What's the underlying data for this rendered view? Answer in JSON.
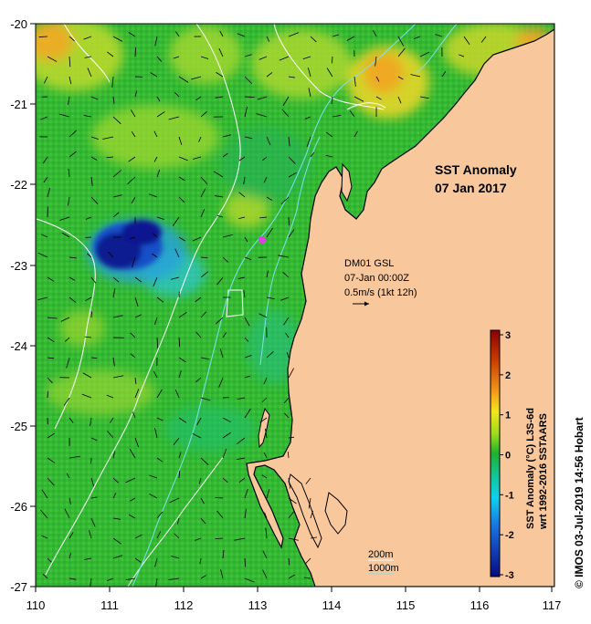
{
  "map": {
    "title": "SST Anomaly",
    "date": "07 Jan 2017",
    "station_label": "DM01 GSL",
    "station_time": "07-Jan 00:00Z",
    "current_scale": "0.5m/s (1kt 12h)",
    "contour_legend": [
      "200m",
      "1000m"
    ],
    "credit": "© IMOS 03-Jul-2019 14:56 Hobart",
    "colorbar": {
      "label_line1": "SST Anomaly (°C) L3S-6d",
      "label_line2": "wrt 1992-2016 SSTAARS",
      "ticks": [
        "3",
        "2",
        "1",
        "0",
        "-1",
        "-2",
        "-3"
      ],
      "range": [
        -3,
        3
      ]
    },
    "axes": {
      "x_ticks": [
        "110",
        "111",
        "112",
        "113",
        "114",
        "115",
        "116",
        "117"
      ],
      "y_ticks": [
        "-20",
        "-21",
        "-22",
        "-23",
        "-24",
        "-25",
        "-26",
        "-27"
      ],
      "lon_range": [
        110,
        117
      ],
      "lat_range": [
        -27,
        -20
      ]
    },
    "colors": {
      "land": "#f8c89c",
      "ocean_base": "#33bb33",
      "warm_anomaly": "#f2a020",
      "cold_anomaly": "#101890",
      "contour_200m": "#ffffff",
      "contour_1000m": "#7fe0f0",
      "station_marker": "#e040e0"
    }
  }
}
